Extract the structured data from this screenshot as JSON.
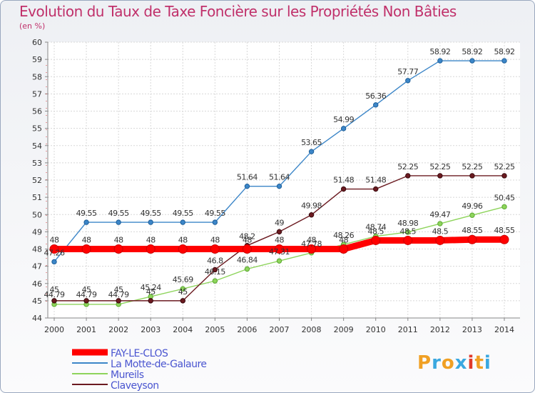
{
  "chart_data": {
    "type": "line",
    "title": "Evolution du Taux de Taxe Foncière sur les Propriétés Non Bâties",
    "ylabel": "(en %)",
    "xlabel": "",
    "ylim": [
      44,
      60
    ],
    "grid": true,
    "legend_position": "bottom-left",
    "x": [
      2000,
      2001,
      2002,
      2003,
      2004,
      2005,
      2006,
      2007,
      2008,
      2009,
      2010,
      2011,
      2012,
      2013,
      2014
    ],
    "yticks": [
      44,
      45,
      46,
      47,
      48,
      49,
      50,
      51,
      52,
      53,
      54,
      55,
      56,
      57,
      58,
      59,
      60
    ],
    "series": [
      {
        "name": "FAY-LE-CLOS",
        "color": "#ff0000",
        "values": [
          48,
          48,
          48,
          48,
          48,
          48,
          48,
          48,
          48,
          48,
          48.5,
          48.5,
          48.5,
          48.55,
          48.55
        ],
        "labels": [
          "48",
          "48",
          "48",
          "48",
          "48",
          "48",
          "48",
          "48",
          "48",
          "48",
          "48.5",
          "48.5",
          "48.5",
          "48.55",
          "48.55"
        ]
      },
      {
        "name": "La Motte-de-Galaure",
        "color": "#3c86c8",
        "values": [
          47.26,
          49.55,
          49.55,
          49.55,
          49.55,
          49.55,
          51.64,
          51.64,
          53.65,
          54.99,
          56.36,
          57.77,
          58.92,
          58.92,
          58.92
        ],
        "labels": [
          "47.26",
          "49.55",
          "49.55",
          "49.55",
          "49.55",
          "49.55",
          "51.64",
          "51.64",
          "53.65",
          "54.99",
          "56.36",
          "57.77",
          "58.92",
          "58.92",
          "58.92"
        ]
      },
      {
        "name": "Mureils",
        "color": "#8ed45c",
        "values": [
          44.79,
          44.79,
          44.79,
          45.24,
          45.69,
          46.15,
          46.84,
          47.31,
          47.78,
          48.26,
          48.74,
          48.98,
          49.47,
          49.96,
          50.45
        ],
        "labels": [
          "44.79",
          "44.79",
          "44.79",
          "45.24",
          "45.69",
          "46.15",
          "46.84",
          "47.31",
          "47.78",
          "48.26",
          "48.74",
          "48.98",
          "49.47",
          "49.96",
          "50.45"
        ]
      },
      {
        "name": "Claveyson",
        "color": "#6b1a20",
        "values": [
          45,
          45,
          45,
          45,
          45,
          46.8,
          48.2,
          49,
          49.98,
          51.48,
          51.48,
          52.25,
          52.25,
          52.25,
          52.25
        ],
        "labels": [
          "45",
          "45",
          "45",
          "45",
          "45",
          "46.8",
          "48.2",
          "49",
          "49.98",
          "51.48",
          "51.48",
          "52.25",
          "52.25",
          "52.25",
          "52.25"
        ]
      }
    ]
  },
  "brand": {
    "letters": [
      "P",
      "r",
      "o",
      "x",
      "i",
      "t",
      "i"
    ],
    "colors": [
      "#f0a024",
      "#3aa8e0",
      "#f0a024",
      "#3aa8e0",
      "#e03a2a",
      "#f0a024",
      "#3aa8e0"
    ]
  }
}
